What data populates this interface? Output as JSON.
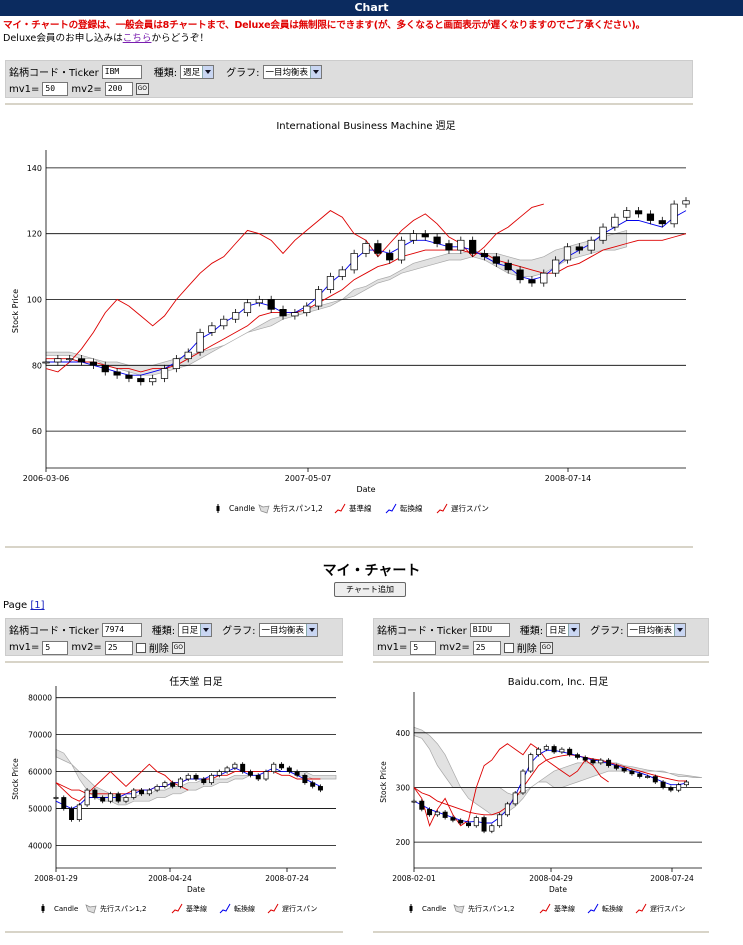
{
  "header": {
    "title": "Chart",
    "notice": "マイ・チャートの登録は、一般会員は8チャートまで、Deluxe会員は無制限にできます(が、多くなると画面表示が遅くなりますのでご了承ください)。",
    "apply_prefix": "Deluxe会員のお申し込みは",
    "apply_link": "こちら",
    "apply_suffix": "からどうぞ！"
  },
  "form_labels": {
    "ticker": "銘柄コード・Ticker",
    "type": "種類:",
    "graph": "グラフ:",
    "mv1": "mv1=",
    "mv2": "mv2=",
    "go": "GO",
    "delete": "削除"
  },
  "main_form": {
    "ticker": "IBM",
    "type": "週足",
    "graph": "一目均衡表",
    "mv1": "50",
    "mv2": "200"
  },
  "my_chart": {
    "title": "マイ・チャート",
    "add_button": "チャート追加",
    "page_label": "Page",
    "page_link": "[1]"
  },
  "sub_forms": [
    {
      "ticker": "7974",
      "type": "日足",
      "graph": "一目均衡表",
      "mv1": "5",
      "mv2": "25"
    },
    {
      "ticker": "BIDU",
      "type": "日足",
      "graph": "一目均衡表",
      "mv1": "5",
      "mv2": "25"
    }
  ],
  "legend": {
    "candle": "Candle",
    "span": "先行スパン1,2",
    "kijun": "基準線",
    "tenkan": "転換線",
    "chikou": "遅行スパン"
  },
  "colors": {
    "kijun": "#dd0000",
    "tenkan": "#0000ee",
    "chikou": "#dd0000",
    "cloud": "#e2e2e2"
  },
  "chart_data": [
    {
      "type": "line",
      "title": "International Business Machine 週足",
      "xlabel": "Date",
      "ylabel": "Stock Price",
      "yticks": [
        60,
        80,
        100,
        120,
        140
      ],
      "ylim": [
        50,
        143
      ],
      "xticks": [
        "2006-03-06",
        "2007-05-07",
        "2008-07-14"
      ],
      "grid": true,
      "legend_position": "bottom",
      "series": [
        {
          "key": "close",
          "values": [
            81,
            82,
            82,
            81,
            80,
            78,
            77,
            76,
            75,
            76,
            79,
            82,
            84,
            90,
            92,
            94,
            96,
            99,
            100,
            97,
            95,
            96,
            98,
            103,
            107,
            109,
            114,
            117,
            114,
            112,
            118,
            120,
            119,
            117,
            115,
            118,
            114,
            113,
            111,
            109,
            106,
            105,
            108,
            112,
            116,
            115,
            118,
            122,
            125,
            127,
            126,
            124,
            123,
            129,
            130
          ]
        },
        {
          "key": "tenkan",
          "values": [
            81,
            81,
            81,
            81,
            80,
            79,
            78,
            77,
            77,
            78,
            79,
            81,
            84,
            88,
            90,
            93,
            95,
            98,
            99,
            98,
            96,
            96,
            98,
            101,
            105,
            108,
            112,
            115,
            115,
            114,
            116,
            118,
            118,
            117,
            116,
            116,
            115,
            113,
            111,
            110,
            107,
            106,
            107,
            110,
            113,
            115,
            117,
            120,
            122,
            124,
            124,
            123,
            122,
            125,
            127
          ]
        },
        {
          "key": "kijun",
          "values": [
            82,
            82,
            82,
            81,
            81,
            80,
            79,
            79,
            78,
            79,
            79,
            80,
            82,
            84,
            86,
            88,
            90,
            92,
            95,
            96,
            96,
            96,
            97,
            99,
            101,
            103,
            106,
            108,
            110,
            111,
            113,
            114,
            115,
            115,
            115,
            115,
            114,
            114,
            112,
            111,
            110,
            109,
            108,
            108,
            110,
            111,
            113,
            115,
            116,
            117,
            118,
            118,
            118,
            119,
            120
          ]
        },
        {
          "key": "chikou",
          "values": [
            79,
            78,
            81,
            85,
            90,
            96,
            100,
            98,
            95,
            92,
            95,
            100,
            104,
            108,
            111,
            113,
            117,
            121,
            120,
            118,
            114,
            118,
            121,
            124,
            127,
            125,
            120,
            118,
            113,
            117,
            121,
            124,
            126,
            123,
            119,
            117,
            113,
            116,
            120,
            122,
            125,
            128,
            129
          ]
        },
        {
          "key": "span_a",
          "values": [
            83,
            83,
            83,
            82,
            82,
            81,
            81,
            80,
            80,
            80,
            81,
            82,
            83,
            84,
            85,
            86,
            88,
            90,
            92,
            94,
            95,
            96,
            97,
            98,
            99,
            100,
            103,
            104,
            106,
            107,
            109,
            111,
            112,
            113,
            114,
            114,
            115,
            114,
            114,
            113,
            112,
            112,
            113,
            115,
            116,
            117,
            118,
            119,
            120,
            121
          ]
        },
        {
          "key": "span_b",
          "values": [
            84,
            84,
            84,
            83,
            82,
            80,
            79,
            78,
            77,
            77,
            78,
            79,
            80,
            82,
            84,
            86,
            88,
            90,
            91,
            92,
            94,
            95,
            96,
            97,
            98,
            100,
            101,
            103,
            105,
            106,
            108,
            109,
            110,
            111,
            112,
            112,
            113,
            112,
            110,
            108,
            107,
            107,
            108,
            110,
            112,
            113,
            114,
            115,
            115,
            116
          ]
        }
      ]
    },
    {
      "type": "line",
      "title": "任天堂 日足",
      "xlabel": "Date",
      "ylabel": "Stock Price",
      "yticks": [
        40000,
        50000,
        60000,
        70000,
        80000
      ],
      "ylim": [
        35000,
        81000
      ],
      "xticks": [
        "2008-01-29",
        "2008-04-24",
        "2008-07-24"
      ],
      "grid": true,
      "legend_position": "bottom",
      "series": [
        {
          "key": "close",
          "values": [
            53000,
            50000,
            47000,
            51000,
            55000,
            53000,
            52000,
            54000,
            52000,
            53000,
            55000,
            54000,
            55000,
            56000,
            57000,
            56000,
            58000,
            59000,
            58000,
            57000,
            59000,
            60000,
            61000,
            62000,
            60000,
            59000,
            58000,
            60000,
            62000,
            61000,
            60000,
            59000,
            57000,
            56000,
            55000
          ]
        },
        {
          "key": "tenkan",
          "values": [
            52000,
            51000,
            50000,
            51000,
            53000,
            53000,
            53000,
            53000,
            53000,
            54000,
            54000,
            55000,
            55000,
            56000,
            56000,
            57000,
            57000,
            58000,
            58000,
            58000,
            59000,
            59000,
            60000,
            61000,
            60000,
            59000,
            59000,
            60000,
            61000,
            60000,
            60000,
            59000,
            58000,
            57000,
            56000
          ]
        },
        {
          "key": "kijun",
          "values": [
            57000,
            56000,
            55000,
            55000,
            54000,
            54000,
            54000,
            54000,
            54000,
            54000,
            55000,
            55000,
            55000,
            56000,
            56000,
            57000,
            57000,
            58000,
            58000,
            58000,
            58000,
            59000,
            59000,
            60000,
            60000,
            60000,
            60000,
            60000,
            60000,
            59000,
            59000,
            58000,
            58000,
            58000,
            58000
          ]
        },
        {
          "key": "chikou",
          "values": [
            57000,
            55000,
            53000,
            52000,
            54000,
            56000,
            58000,
            60000,
            58000,
            56000,
            58000,
            60000,
            62000,
            60000,
            59000,
            57000,
            56000,
            55000
          ]
        },
        {
          "key": "span_a",
          "values": [
            64000,
            63000,
            62000,
            60000,
            58000,
            56000,
            55000,
            54000,
            53000,
            53000,
            53000,
            54000,
            54000,
            55000,
            55000,
            56000,
            56000,
            57000,
            57000,
            58000,
            58000,
            58000,
            58000,
            59000,
            59000,
            59000,
            59000,
            60000,
            60000,
            60000,
            60000,
            59000,
            59000,
            58000,
            58000,
            58000,
            58000
          ]
        },
        {
          "key": "span_b",
          "values": [
            66000,
            65000,
            62000,
            58000,
            55000,
            53000,
            52000,
            52000,
            51000,
            51000,
            52000,
            52000,
            52000,
            53000,
            53000,
            54000,
            54000,
            55000,
            55000,
            56000,
            56000,
            57000,
            57000,
            58000,
            58000,
            59000,
            59000,
            60000,
            60000,
            60000,
            60000,
            60000,
            60000,
            59000,
            59000,
            59000,
            59000
          ]
        }
      ]
    },
    {
      "type": "line",
      "title": "Baidu.com, Inc. 日足",
      "xlabel": "Date",
      "ylabel": "Stock Price",
      "yticks": [
        200,
        300,
        400
      ],
      "ylim": [
        160,
        460
      ],
      "xticks": [
        "2008-02-01",
        "2008-04-29",
        "2008-07-24"
      ],
      "grid": true,
      "legend_position": "bottom",
      "series": [
        {
          "key": "close",
          "values": [
            275,
            260,
            250,
            255,
            245,
            240,
            235,
            230,
            245,
            220,
            230,
            250,
            270,
            290,
            330,
            360,
            370,
            375,
            365,
            370,
            360,
            355,
            350,
            345,
            350,
            340,
            335,
            330,
            325,
            320,
            320,
            310,
            300,
            295,
            305,
            310
          ]
        },
        {
          "key": "tenkan",
          "values": [
            275,
            268,
            260,
            255,
            250,
            245,
            240,
            237,
            238,
            235,
            235,
            245,
            260,
            285,
            315,
            345,
            360,
            368,
            368,
            365,
            362,
            358,
            354,
            350,
            348,
            344,
            340,
            335,
            330,
            327,
            322,
            316,
            310,
            305,
            305,
            308
          ]
        },
        {
          "key": "kijun",
          "values": [
            300,
            290,
            285,
            275,
            270,
            265,
            260,
            255,
            252,
            250,
            250,
            255,
            265,
            280,
            300,
            320,
            340,
            350,
            355,
            358,
            360,
            358,
            355,
            352,
            350,
            346,
            342,
            338,
            334,
            330,
            326,
            322,
            318,
            315,
            312,
            312
          ]
        },
        {
          "key": "chikou",
          "values": [
            300,
            280,
            230,
            260,
            280,
            250,
            230,
            240,
            300,
            340,
            350,
            370,
            380,
            370,
            360,
            380,
            370,
            350,
            340,
            330,
            320,
            330,
            350,
            340,
            320,
            310
          ]
        },
        {
          "key": "span_a",
          "values": [
            395,
            390,
            370,
            340,
            320,
            300,
            300,
            300,
            300,
            300,
            300,
            300,
            290,
            285,
            290,
            300,
            310,
            320,
            330,
            335,
            340,
            345,
            345,
            345,
            345,
            345,
            345,
            340,
            338,
            335,
            332,
            330,
            328,
            326,
            324,
            322,
            320,
            318
          ]
        },
        {
          "key": "span_b",
          "values": [
            410,
            405,
            395,
            380,
            360,
            330,
            300,
            280,
            270,
            260,
            250,
            250,
            255,
            265,
            280,
            300,
            310,
            310,
            300,
            300,
            305,
            310,
            315,
            320,
            325,
            330,
            330,
            330,
            330,
            330,
            330,
            330,
            330,
            325,
            320,
            320,
            318,
            318
          ]
        }
      ]
    }
  ]
}
